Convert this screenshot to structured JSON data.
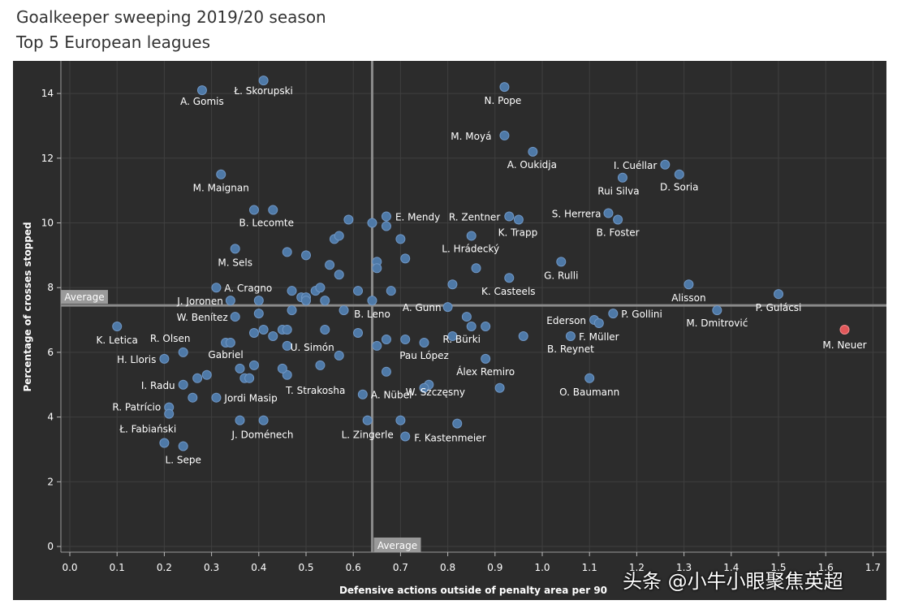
{
  "header": {
    "title": "Goalkeeper sweeping 2019/20 season",
    "subtitle": "Top 5 European leagues"
  },
  "watermark": "头条 @小牛小眼聚焦英超",
  "colors": {
    "background": "#2c2c2c",
    "point": "#4e79a7",
    "highlight": "#e15759",
    "axis_line": "#8a8a8a",
    "label": "#ffffff"
  },
  "chart_data": {
    "type": "scatter",
    "title": "Goalkeeper sweeping 2019/20 season",
    "xlabel": "Defensive actions outside of penalty area per 90",
    "ylabel": "Percentage of crosses stopped",
    "xlim": [
      0.0,
      1.7
    ],
    "ylim": [
      0,
      15
    ],
    "xticks": [
      "0.0",
      "0.1",
      "0.2",
      "0.3",
      "0.4",
      "0.5",
      "0.6",
      "0.7",
      "0.8",
      "0.9",
      "1.0",
      "1.1",
      "1.2",
      "1.3",
      "1.4",
      "1.5",
      "1.6",
      "1.7"
    ],
    "yticks": [
      "0",
      "2",
      "4",
      "6",
      "8",
      "10",
      "12",
      "14"
    ],
    "averages": {
      "x": 0.64,
      "y": 7.45,
      "label": "Average"
    },
    "grid": true,
    "points": [
      {
        "x": 0.28,
        "y": 14.1,
        "name": "A. Gomis"
      },
      {
        "x": 0.41,
        "y": 14.4,
        "name": "Ł. Skorupski"
      },
      {
        "x": 0.92,
        "y": 14.2,
        "name": "N. Pope"
      },
      {
        "x": 0.92,
        "y": 12.7,
        "name": "M. Moyá"
      },
      {
        "x": 0.98,
        "y": 12.2,
        "name": "A. Oukidja"
      },
      {
        "x": 1.26,
        "y": 11.8,
        "name": "I. Cuéllar"
      },
      {
        "x": 1.29,
        "y": 11.5,
        "name": "D. Soria"
      },
      {
        "x": 1.17,
        "y": 11.4,
        "name": "Rui Silva"
      },
      {
        "x": 0.32,
        "y": 11.5,
        "name": "M. Maignan"
      },
      {
        "x": 0.39,
        "y": 10.4,
        "name": ""
      },
      {
        "x": 0.43,
        "y": 10.4,
        "name": "B. Lecomte"
      },
      {
        "x": 0.67,
        "y": 10.2,
        "name": "E. Mendy"
      },
      {
        "x": 0.93,
        "y": 10.2,
        "name": "R. Zentner"
      },
      {
        "x": 0.95,
        "y": 10.1,
        "name": "K. Trapp"
      },
      {
        "x": 1.14,
        "y": 10.3,
        "name": "S. Herrera"
      },
      {
        "x": 1.16,
        "y": 10.1,
        "name": "B. Foster"
      },
      {
        "x": 0.85,
        "y": 9.6,
        "name": "L. Hrádecký"
      },
      {
        "x": 0.35,
        "y": 9.2,
        "name": "M. Sels"
      },
      {
        "x": 1.04,
        "y": 8.8,
        "name": "G. Rulli"
      },
      {
        "x": 0.93,
        "y": 8.3,
        "name": "K. Casteels"
      },
      {
        "x": 1.31,
        "y": 8.1,
        "name": "Alisson"
      },
      {
        "x": 1.5,
        "y": 7.8,
        "name": "P. Gulácsi"
      },
      {
        "x": 1.37,
        "y": 7.3,
        "name": "M. Dmitrović"
      },
      {
        "x": 1.64,
        "y": 6.7,
        "name": "M. Neuer",
        "highlight": true
      },
      {
        "x": 0.31,
        "y": 8.0,
        "name": "A. Cragno"
      },
      {
        "x": 0.34,
        "y": 7.6,
        "name": "J. Joronen"
      },
      {
        "x": 0.35,
        "y": 7.1,
        "name": "W. Benítez"
      },
      {
        "x": 0.1,
        "y": 6.8,
        "name": "K. Letica"
      },
      {
        "x": 0.24,
        "y": 6.0,
        "name": "R. Olsen"
      },
      {
        "x": 0.2,
        "y": 5.8,
        "name": "H. Lloris"
      },
      {
        "x": 0.33,
        "y": 6.3,
        "name": "Gabriel"
      },
      {
        "x": 0.24,
        "y": 5.0,
        "name": "I. Radu"
      },
      {
        "x": 0.21,
        "y": 4.3,
        "name": "R. Patrício"
      },
      {
        "x": 0.21,
        "y": 4.1,
        "name": "Ł. Fabiański"
      },
      {
        "x": 0.24,
        "y": 3.1,
        "name": "L. Sepe"
      },
      {
        "x": 0.2,
        "y": 3.2,
        "name": ""
      },
      {
        "x": 0.31,
        "y": 4.6,
        "name": "Jordi Masip"
      },
      {
        "x": 0.36,
        "y": 3.9,
        "name": "J. Doménech"
      },
      {
        "x": 0.41,
        "y": 3.9,
        "name": ""
      },
      {
        "x": 0.46,
        "y": 6.2,
        "name": "U. Simón"
      },
      {
        "x": 0.46,
        "y": 5.3,
        "name": "T. Strakosha"
      },
      {
        "x": 0.63,
        "y": 3.9,
        "name": "L. Zingerle"
      },
      {
        "x": 0.62,
        "y": 4.7,
        "name": "A. Nübel"
      },
      {
        "x": 0.71,
        "y": 3.4,
        "name": "F. Kastenmeier"
      },
      {
        "x": 0.82,
        "y": 3.8,
        "name": ""
      },
      {
        "x": 0.76,
        "y": 5.0,
        "name": "W. Szczęsny"
      },
      {
        "x": 0.88,
        "y": 5.8,
        "name": "Álex Remiro"
      },
      {
        "x": 0.8,
        "y": 7.4,
        "name": "A. Gunn"
      },
      {
        "x": 0.64,
        "y": 7.6,
        "name": "B. Leno"
      },
      {
        "x": 0.75,
        "y": 6.3,
        "name": "Pau López"
      },
      {
        "x": 0.85,
        "y": 6.8,
        "name": "R. Bürki"
      },
      {
        "x": 1.11,
        "y": 7.0,
        "name": "Ederson"
      },
      {
        "x": 1.15,
        "y": 7.2,
        "name": "P. Gollini"
      },
      {
        "x": 1.12,
        "y": 6.9,
        "name": "F. Müller"
      },
      {
        "x": 1.06,
        "y": 6.5,
        "name": "B. Reynet"
      },
      {
        "x": 1.1,
        "y": 5.2,
        "name": "O. Baumann"
      },
      {
        "x": 0.91,
        "y": 4.9,
        "name": ""
      },
      {
        "x": 0.26,
        "y": 4.6,
        "name": ""
      },
      {
        "x": 0.27,
        "y": 5.2,
        "name": ""
      },
      {
        "x": 0.29,
        "y": 5.3,
        "name": ""
      },
      {
        "x": 0.34,
        "y": 6.3,
        "name": ""
      },
      {
        "x": 0.36,
        "y": 5.5,
        "name": ""
      },
      {
        "x": 0.37,
        "y": 5.2,
        "name": ""
      },
      {
        "x": 0.38,
        "y": 5.2,
        "name": ""
      },
      {
        "x": 0.39,
        "y": 5.6,
        "name": ""
      },
      {
        "x": 0.39,
        "y": 6.6,
        "name": ""
      },
      {
        "x": 0.4,
        "y": 7.2,
        "name": ""
      },
      {
        "x": 0.4,
        "y": 7.6,
        "name": ""
      },
      {
        "x": 0.41,
        "y": 6.7,
        "name": ""
      },
      {
        "x": 0.43,
        "y": 6.5,
        "name": ""
      },
      {
        "x": 0.45,
        "y": 5.5,
        "name": ""
      },
      {
        "x": 0.45,
        "y": 6.7,
        "name": ""
      },
      {
        "x": 0.46,
        "y": 6.7,
        "name": ""
      },
      {
        "x": 0.46,
        "y": 9.1,
        "name": ""
      },
      {
        "x": 0.47,
        "y": 7.9,
        "name": ""
      },
      {
        "x": 0.47,
        "y": 7.3,
        "name": ""
      },
      {
        "x": 0.49,
        "y": 7.7,
        "name": ""
      },
      {
        "x": 0.5,
        "y": 9.0,
        "name": ""
      },
      {
        "x": 0.5,
        "y": 7.7,
        "name": ""
      },
      {
        "x": 0.5,
        "y": 7.6,
        "name": ""
      },
      {
        "x": 0.52,
        "y": 7.9,
        "name": ""
      },
      {
        "x": 0.53,
        "y": 8.0,
        "name": ""
      },
      {
        "x": 0.53,
        "y": 5.6,
        "name": ""
      },
      {
        "x": 0.54,
        "y": 6.7,
        "name": ""
      },
      {
        "x": 0.54,
        "y": 7.6,
        "name": ""
      },
      {
        "x": 0.55,
        "y": 8.7,
        "name": ""
      },
      {
        "x": 0.56,
        "y": 9.5,
        "name": ""
      },
      {
        "x": 0.57,
        "y": 9.6,
        "name": ""
      },
      {
        "x": 0.57,
        "y": 8.4,
        "name": ""
      },
      {
        "x": 0.57,
        "y": 5.9,
        "name": ""
      },
      {
        "x": 0.58,
        "y": 7.3,
        "name": ""
      },
      {
        "x": 0.59,
        "y": 10.1,
        "name": ""
      },
      {
        "x": 0.61,
        "y": 7.9,
        "name": ""
      },
      {
        "x": 0.61,
        "y": 6.6,
        "name": ""
      },
      {
        "x": 0.64,
        "y": 10.0,
        "name": ""
      },
      {
        "x": 0.65,
        "y": 8.8,
        "name": ""
      },
      {
        "x": 0.65,
        "y": 8.6,
        "name": ""
      },
      {
        "x": 0.65,
        "y": 6.2,
        "name": ""
      },
      {
        "x": 0.67,
        "y": 9.9,
        "name": ""
      },
      {
        "x": 0.67,
        "y": 6.4,
        "name": ""
      },
      {
        "x": 0.67,
        "y": 5.4,
        "name": ""
      },
      {
        "x": 0.68,
        "y": 7.9,
        "name": ""
      },
      {
        "x": 0.7,
        "y": 9.5,
        "name": ""
      },
      {
        "x": 0.7,
        "y": 3.9,
        "name": ""
      },
      {
        "x": 0.71,
        "y": 8.9,
        "name": ""
      },
      {
        "x": 0.71,
        "y": 6.4,
        "name": ""
      },
      {
        "x": 0.75,
        "y": 4.9,
        "name": ""
      },
      {
        "x": 0.81,
        "y": 8.1,
        "name": ""
      },
      {
        "x": 0.81,
        "y": 6.5,
        "name": ""
      },
      {
        "x": 0.84,
        "y": 7.1,
        "name": ""
      },
      {
        "x": 0.86,
        "y": 8.6,
        "name": ""
      },
      {
        "x": 0.88,
        "y": 6.8,
        "name": ""
      },
      {
        "x": 0.96,
        "y": 6.5,
        "name": ""
      }
    ]
  }
}
